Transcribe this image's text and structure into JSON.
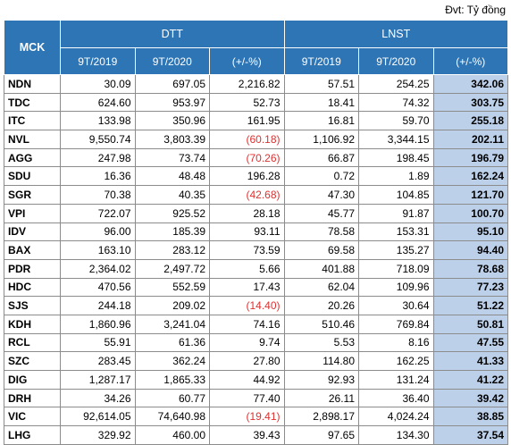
{
  "unit_note": "Đvt: Tỷ đồng",
  "headers": {
    "mck": "MCK",
    "dtt": "DTT",
    "lnst": "LNST",
    "sub": [
      "9T/2019",
      "9T/2020",
      "(+/-%)",
      "9T/2019",
      "9T/2020",
      "(+/-%)"
    ]
  },
  "rows": [
    {
      "mck": "NDN",
      "dtt_2019": "30.09",
      "dtt_2020": "697.05",
      "dtt_chg": "2,216.82",
      "lnst_2019": "57.51",
      "lnst_2020": "254.25",
      "lnst_chg": "342.06"
    },
    {
      "mck": "TDC",
      "dtt_2019": "624.60",
      "dtt_2020": "953.97",
      "dtt_chg": "52.73",
      "lnst_2019": "18.41",
      "lnst_2020": "74.32",
      "lnst_chg": "303.75"
    },
    {
      "mck": "ITC",
      "dtt_2019": "133.98",
      "dtt_2020": "350.96",
      "dtt_chg": "161.95",
      "lnst_2019": "16.81",
      "lnst_2020": "59.70",
      "lnst_chg": "255.18"
    },
    {
      "mck": "NVL",
      "dtt_2019": "9,550.74",
      "dtt_2020": "3,803.39",
      "dtt_chg": "(60.18)",
      "lnst_2019": "1,106.92",
      "lnst_2020": "3,344.15",
      "lnst_chg": "202.11"
    },
    {
      "mck": "AGG",
      "dtt_2019": "247.98",
      "dtt_2020": "73.74",
      "dtt_chg": "(70.26)",
      "lnst_2019": "66.87",
      "lnst_2020": "198.45",
      "lnst_chg": "196.79"
    },
    {
      "mck": "SDU",
      "dtt_2019": "16.36",
      "dtt_2020": "48.48",
      "dtt_chg": "196.28",
      "lnst_2019": "0.72",
      "lnst_2020": "1.89",
      "lnst_chg": "162.24"
    },
    {
      "mck": "SGR",
      "dtt_2019": "70.38",
      "dtt_2020": "40.35",
      "dtt_chg": "(42.68)",
      "lnst_2019": "47.30",
      "lnst_2020": "104.85",
      "lnst_chg": "121.70"
    },
    {
      "mck": "VPI",
      "dtt_2019": "722.07",
      "dtt_2020": "925.52",
      "dtt_chg": "28.18",
      "lnst_2019": "45.77",
      "lnst_2020": "91.87",
      "lnst_chg": "100.70"
    },
    {
      "mck": "IDV",
      "dtt_2019": "96.00",
      "dtt_2020": "185.39",
      "dtt_chg": "93.11",
      "lnst_2019": "78.58",
      "lnst_2020": "153.31",
      "lnst_chg": "95.10"
    },
    {
      "mck": "BAX",
      "dtt_2019": "163.10",
      "dtt_2020": "283.12",
      "dtt_chg": "73.59",
      "lnst_2019": "69.58",
      "lnst_2020": "135.27",
      "lnst_chg": "94.40"
    },
    {
      "mck": "PDR",
      "dtt_2019": "2,364.02",
      "dtt_2020": "2,497.72",
      "dtt_chg": "5.66",
      "lnst_2019": "401.88",
      "lnst_2020": "718.09",
      "lnst_chg": "78.68"
    },
    {
      "mck": "HDC",
      "dtt_2019": "470.56",
      "dtt_2020": "552.59",
      "dtt_chg": "17.43",
      "lnst_2019": "62.04",
      "lnst_2020": "109.96",
      "lnst_chg": "77.23"
    },
    {
      "mck": "SJS",
      "dtt_2019": "244.18",
      "dtt_2020": "209.02",
      "dtt_chg": "(14.40)",
      "lnst_2019": "20.26",
      "lnst_2020": "30.64",
      "lnst_chg": "51.22"
    },
    {
      "mck": "KDH",
      "dtt_2019": "1,860.96",
      "dtt_2020": "3,241.04",
      "dtt_chg": "74.16",
      "lnst_2019": "510.46",
      "lnst_2020": "769.84",
      "lnst_chg": "50.81"
    },
    {
      "mck": "RCL",
      "dtt_2019": "55.91",
      "dtt_2020": "61.36",
      "dtt_chg": "9.74",
      "lnst_2019": "5.53",
      "lnst_2020": "8.16",
      "lnst_chg": "47.55"
    },
    {
      "mck": "SZC",
      "dtt_2019": "283.45",
      "dtt_2020": "362.24",
      "dtt_chg": "27.80",
      "lnst_2019": "114.80",
      "lnst_2020": "162.25",
      "lnst_chg": "41.33"
    },
    {
      "mck": "DIG",
      "dtt_2019": "1,287.17",
      "dtt_2020": "1,865.33",
      "dtt_chg": "44.92",
      "lnst_2019": "92.93",
      "lnst_2020": "131.24",
      "lnst_chg": "41.22"
    },
    {
      "mck": "DRH",
      "dtt_2019": "34.26",
      "dtt_2020": "60.77",
      "dtt_chg": "77.40",
      "lnst_2019": "26.11",
      "lnst_2020": "36.40",
      "lnst_chg": "39.42"
    },
    {
      "mck": "VIC",
      "dtt_2019": "92,614.05",
      "dtt_2020": "74,640.98",
      "dtt_chg": "(19.41)",
      "lnst_2019": "2,898.17",
      "lnst_2020": "4,024.24",
      "lnst_chg": "38.85"
    },
    {
      "mck": "LHG",
      "dtt_2019": "329.92",
      "dtt_2020": "460.00",
      "dtt_chg": "39.43",
      "lnst_2019": "97.65",
      "lnst_2020": "134.30",
      "lnst_chg": "37.54"
    }
  ],
  "colors": {
    "header_bg": "#2e75b6",
    "highlight_bg": "#bdd0e9",
    "negative": "#e03030"
  }
}
